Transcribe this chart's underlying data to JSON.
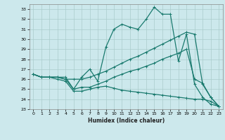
{
  "xlabel": "Humidex (Indice chaleur)",
  "bg_color": "#cce8ec",
  "grid_color": "#aacccc",
  "line_color": "#1a7a6e",
  "x": [
    0,
    1,
    2,
    3,
    4,
    5,
    6,
    7,
    8,
    9,
    10,
    11,
    12,
    13,
    14,
    15,
    16,
    17,
    18,
    19,
    20,
    21,
    22,
    23
  ],
  "series1": [
    26.5,
    26.2,
    26.2,
    26.2,
    26.2,
    25.0,
    26.2,
    27.0,
    25.8,
    29.2,
    31.0,
    31.5,
    31.2,
    31.0,
    32.0,
    33.2,
    32.5,
    32.5,
    27.8,
    30.5,
    25.5,
    24.2,
    23.5,
    23.3
  ],
  "series2": [
    26.5,
    26.2,
    26.2,
    26.2,
    26.0,
    26.0,
    26.0,
    26.2,
    26.5,
    26.8,
    27.2,
    27.6,
    28.0,
    28.3,
    28.7,
    29.1,
    29.5,
    29.9,
    30.3,
    30.7,
    30.5,
    25.5,
    24.2,
    23.3
  ],
  "series3": [
    26.5,
    26.2,
    26.2,
    26.2,
    26.0,
    25.0,
    25.2,
    25.2,
    25.5,
    25.8,
    26.2,
    26.5,
    26.8,
    27.0,
    27.3,
    27.6,
    28.0,
    28.3,
    28.6,
    29.0,
    26.0,
    25.6,
    24.2,
    23.3
  ],
  "series4": [
    26.5,
    26.2,
    26.2,
    26.0,
    25.8,
    24.8,
    24.8,
    25.0,
    25.2,
    25.3,
    25.1,
    24.9,
    24.8,
    24.7,
    24.6,
    24.5,
    24.4,
    24.3,
    24.2,
    24.1,
    24.0,
    24.0,
    23.8,
    23.3
  ],
  "xlim": [
    -0.5,
    23.5
  ],
  "ylim": [
    23,
    33.5
  ],
  "yticks": [
    23,
    24,
    25,
    26,
    27,
    28,
    29,
    30,
    31,
    32,
    33
  ],
  "xticks": [
    0,
    1,
    2,
    3,
    4,
    5,
    6,
    7,
    8,
    9,
    10,
    11,
    12,
    13,
    14,
    15,
    16,
    17,
    18,
    19,
    20,
    21,
    22,
    23
  ]
}
